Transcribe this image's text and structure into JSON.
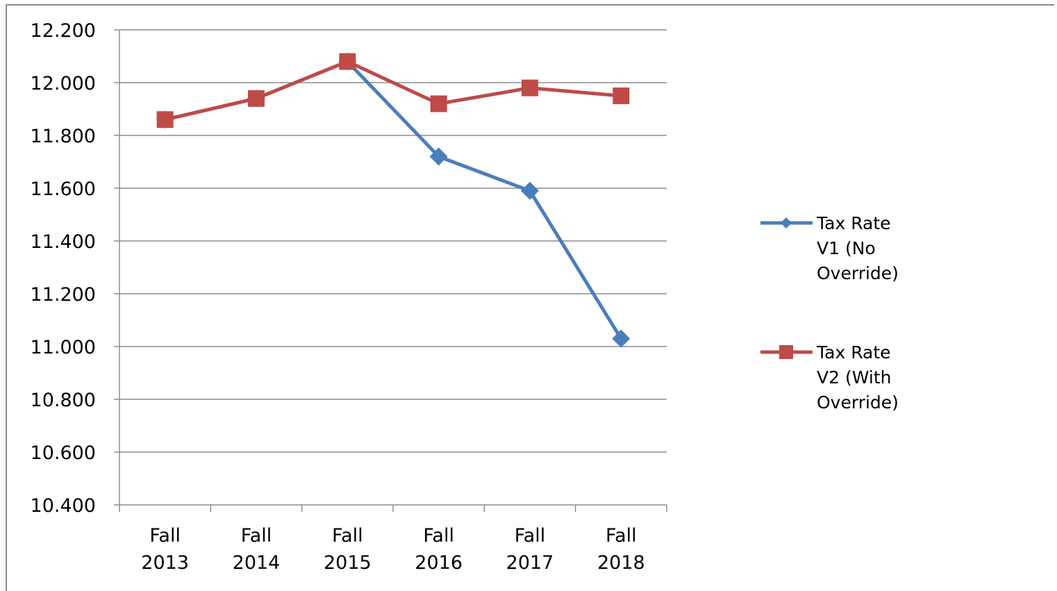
{
  "chart_data": {
    "type": "line",
    "title": "",
    "xlabel": "",
    "ylabel": "",
    "categories": [
      [
        "Fall",
        "2013"
      ],
      [
        "Fall",
        "2014"
      ],
      [
        "Fall",
        "2015"
      ],
      [
        "Fall",
        "2016"
      ],
      [
        "Fall",
        "2017"
      ],
      [
        "Fall",
        "2018"
      ]
    ],
    "ylim": [
      10.4,
      12.2
    ],
    "ytick_step": 0.2,
    "ytick_labels": [
      "12.200",
      "12.000",
      "11.800",
      "11.600",
      "11.400",
      "11.200",
      "11.000",
      "10.800",
      "10.600",
      "10.400"
    ],
    "grid": true,
    "legend_position": "right",
    "series": [
      {
        "name_lines": [
          "Tax Rate",
          "V1 (No",
          "Override)"
        ],
        "values": [
          11.86,
          11.94,
          12.08,
          11.72,
          11.59,
          11.03
        ],
        "color": "#4a7ebb",
        "marker": "diamond"
      },
      {
        "name_lines": [
          "Tax Rate",
          "V2 (With",
          "Override)"
        ],
        "values": [
          11.86,
          11.94,
          12.08,
          11.92,
          11.98,
          11.95
        ],
        "color": "#be4b48",
        "marker": "square"
      }
    ]
  }
}
